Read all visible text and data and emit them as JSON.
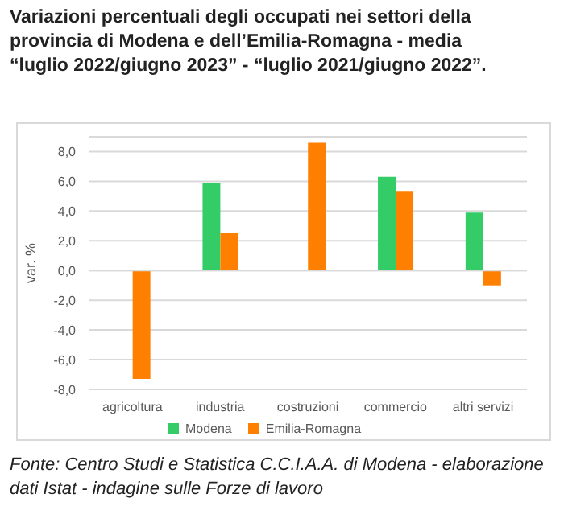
{
  "chart_data": {
    "type": "bar",
    "title": "Variazioni percentuali degli occupati nei settori della provincia di Modena e dell’Emilia-Romagna - media “luglio 2022/giugno 2023” - “luglio 2021/giugno 2022”.",
    "ylabel": "var. %",
    "categories": [
      "agricoltura",
      "industria",
      "costruzioni",
      "commercio",
      "altri servizi"
    ],
    "series": [
      {
        "name": "Modena",
        "color": "#33cc66",
        "values": [
          0,
          5.9,
          0,
          6.3,
          3.9
        ]
      },
      {
        "name": "Emilia-Romagna",
        "color": "#ff7f00",
        "values": [
          -7.3,
          2.5,
          8.6,
          5.3,
          -1.0
        ]
      }
    ],
    "ylim": [
      -8,
      9
    ],
    "yticks": [
      {
        "value": -8,
        "label": "-8,0"
      },
      {
        "value": -6,
        "label": "-6,0"
      },
      {
        "value": -4,
        "label": "-4,0"
      },
      {
        "value": -2,
        "label": "-2,0"
      },
      {
        "value": 0,
        "label": "0,0"
      },
      {
        "value": 2,
        "label": "2,0"
      },
      {
        "value": 4,
        "label": "4,0"
      },
      {
        "value": 6,
        "label": "6,0"
      },
      {
        "value": 8,
        "label": "8,0"
      }
    ],
    "grid": "y",
    "legend": "bottom",
    "annotations": [
      "Fonte: Centro Studi e Statistica C.C.I.A.A. di Modena - elaborazione dati Istat - indagine sulle Forze di lavoro"
    ]
  }
}
